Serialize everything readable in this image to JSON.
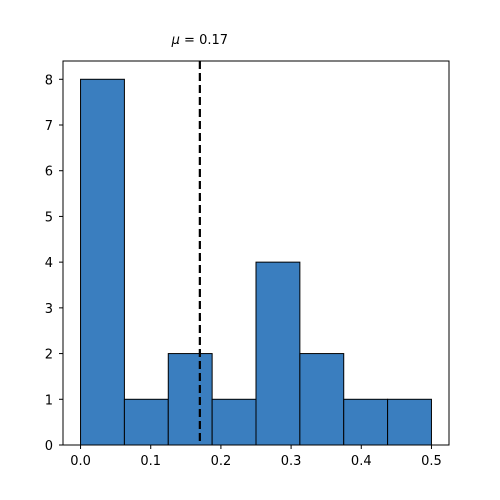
{
  "chart_data": {
    "type": "bar",
    "bin_edges": [
      0.0,
      0.0625,
      0.125,
      0.1875,
      0.25,
      0.3125,
      0.375,
      0.4375,
      0.5
    ],
    "values": [
      8,
      1,
      2,
      1,
      4,
      2,
      1,
      1
    ],
    "xlim": [
      -0.025,
      0.525
    ],
    "ylim": [
      0,
      8.4
    ],
    "xticks": [
      0.0,
      0.1,
      0.2,
      0.3,
      0.4,
      0.5
    ],
    "xtick_labels": [
      "0.0",
      "0.1",
      "0.2",
      "0.3",
      "0.4",
      "0.5"
    ],
    "yticks": [
      0,
      1,
      2,
      3,
      4,
      5,
      6,
      7,
      8
    ],
    "ytick_labels": [
      "0",
      "1",
      "2",
      "3",
      "4",
      "5",
      "6",
      "7",
      "8"
    ],
    "bar_color": "#3a7ebf",
    "edge_color": "#000000",
    "mean_line": {
      "value": 0.17,
      "style": "dashed",
      "color": "#000000"
    },
    "annotation": {
      "prefix": "μ = ",
      "value": "0.17"
    },
    "grid": false
  }
}
